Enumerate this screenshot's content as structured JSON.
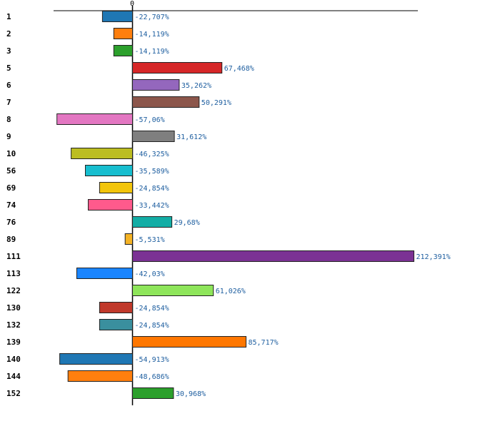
{
  "chart_data": {
    "type": "bar",
    "orientation": "horizontal",
    "title": "",
    "xlabel": "",
    "ylabel": "",
    "zero_tick_label": "0",
    "xlim": [
      -100,
      260
    ],
    "categories": [
      "1",
      "2",
      "3",
      "5",
      "6",
      "7",
      "8",
      "9",
      "10",
      "56",
      "69",
      "74",
      "76",
      "89",
      "111",
      "113",
      "122",
      "130",
      "132",
      "139",
      "140",
      "144",
      "152"
    ],
    "values": [
      -22.707,
      -14.119,
      -14.119,
      67.468,
      35.262,
      50.291,
      -57.06,
      31.612,
      -46.325,
      -35.589,
      -24.854,
      -33.442,
      29.68,
      -5.531,
      212.391,
      -42.03,
      61.026,
      -24.854,
      -24.854,
      85.717,
      -54.913,
      -48.686,
      30.968
    ],
    "value_labels": [
      "-22,707%",
      "-14,119%",
      "-14,119%",
      "67,468%",
      "35,262%",
      "50,291%",
      "-57,06%",
      "31,612%",
      "-46,325%",
      "-35,589%",
      "-24,854%",
      "-33,442%",
      "29,68%",
      "-5,531%",
      "212,391%",
      "-42,03%",
      "61,026%",
      "-24,854%",
      "-24,854%",
      "85,717%",
      "-54,913%",
      "-48,686%",
      "30,968%"
    ],
    "colors": [
      "#1f77b4",
      "#ff7f0e",
      "#2ca02c",
      "#d62728",
      "#9467bd",
      "#8c564b",
      "#e377c2",
      "#7f7f7f",
      "#bcbd22",
      "#17becf",
      "#f2c50c",
      "#ff5a8c",
      "#13ada5",
      "#f5b325",
      "#7b3294",
      "#1a85ff",
      "#8ee55a",
      "#c0392b",
      "#3a8f9e",
      "#ff7700",
      "#1f77b4",
      "#ff7f0e",
      "#2ca02c"
    ]
  }
}
